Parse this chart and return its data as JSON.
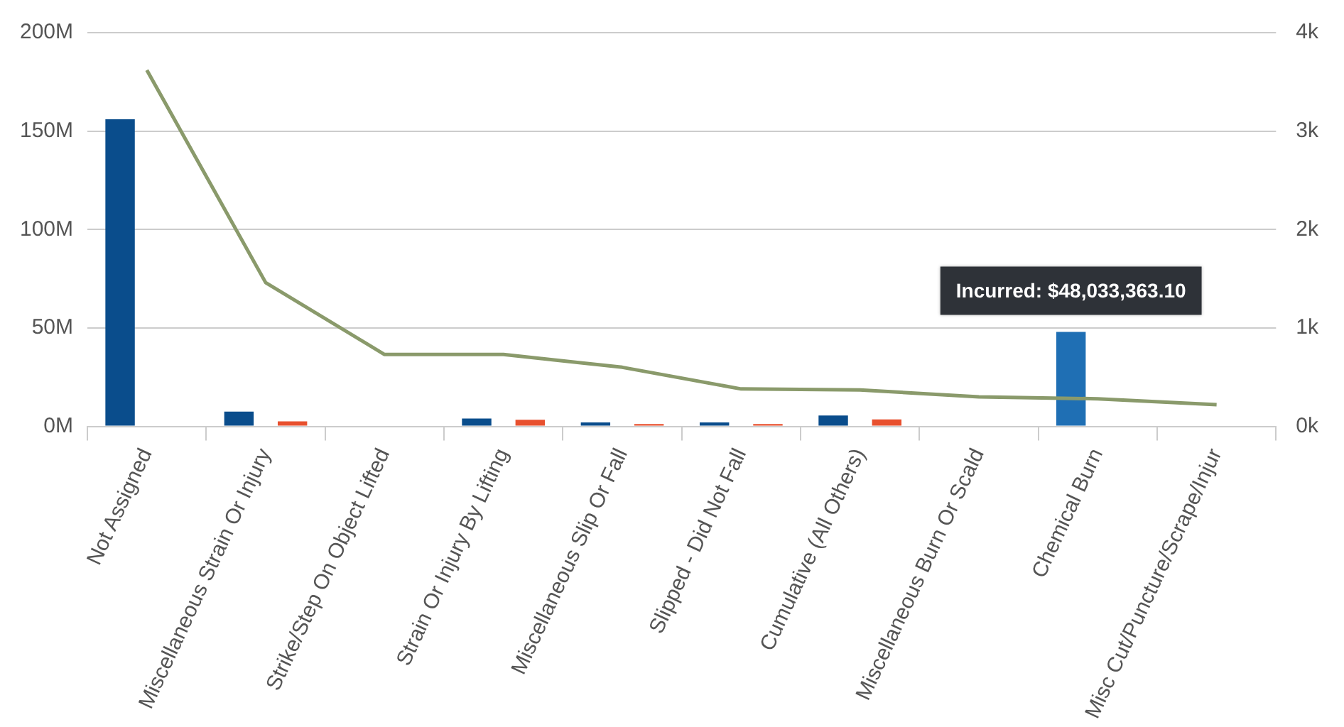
{
  "chart_data": {
    "type": "bar",
    "categories": [
      "Not Assigned",
      "Miscellaneous Strain Or Injury",
      "Strike/Step On Object Lifted",
      "Strain Or Injury By Lifting",
      "Miscellaneous Slip Or Fall",
      "Slipped - Did Not Fall",
      "Cumulative (All Others)",
      "Miscellaneous Burn Or Scald",
      "Chemical Burn",
      "Misc Cut/Puncture/Scrape/Injur"
    ],
    "series": [
      {
        "color": "#0a4d8c",
        "colors": [
          "#0a4d8c",
          "#0a4d8c",
          "#0a4d8c",
          "#0a4d8c",
          "#0a4d8c",
          "#0a4d8c",
          "#0a4d8c",
          "#0a4d8c",
          "#1f6fb4",
          "#0a4d8c"
        ],
        "values": [
          156,
          7.5,
          null,
          4,
          2,
          2,
          5.5,
          null,
          48,
          null
        ]
      },
      {
        "color": "#e8502e",
        "values": [
          null,
          2.5,
          null,
          3.3,
          1.2,
          1.2,
          3.5,
          null,
          null,
          null
        ]
      },
      {
        "type": "line",
        "axis": "y2",
        "color": "#8a9a6b",
        "values": [
          3.62,
          1.46,
          0.73,
          0.73,
          0.6,
          0.38,
          0.37,
          0.3,
          0.28,
          0.22
        ]
      }
    ],
    "ylim": [
      0,
      200
    ],
    "yticks": [
      {
        "value": 0,
        "label": "0M"
      },
      {
        "value": 50,
        "label": "50M"
      },
      {
        "value": 100,
        "label": "100M"
      },
      {
        "value": 150,
        "label": "150M"
      },
      {
        "value": 200,
        "label": "200M"
      }
    ],
    "y2lim": [
      0,
      4
    ],
    "y2ticks": [
      {
        "value": 0,
        "label": "0k"
      },
      {
        "value": 1,
        "label": "1k"
      },
      {
        "value": 2,
        "label": "2k"
      },
      {
        "value": 3,
        "label": "3k"
      },
      {
        "value": 4,
        "label": "4k"
      }
    ],
    "grid": "y",
    "legend": false,
    "marker": "none",
    "line_style": "solid",
    "annotations": [
      "Incurred: $48,033,363.10"
    ]
  }
}
